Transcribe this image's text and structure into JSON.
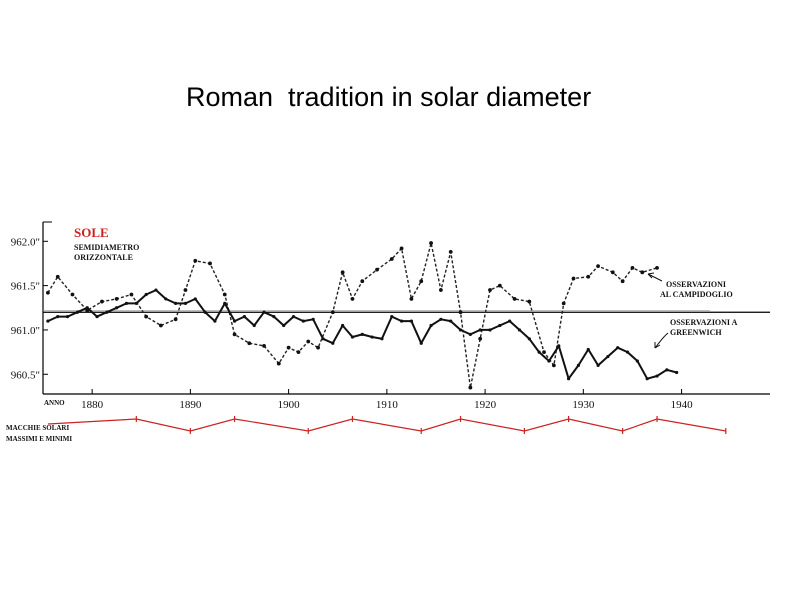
{
  "slide": {
    "title": "Roman  tradition in solar diameter"
  },
  "chart_data": {
    "type": "line",
    "title": "SOLE",
    "subtitle_lines": [
      "SEMIDIAMETRO",
      "ORIZZONTALE"
    ],
    "xlabel": "ANNO",
    "ylabel": "",
    "xlim": [
      1875,
      1949
    ],
    "ylim": [
      960.3,
      962.15
    ],
    "x_ticks": [
      1880,
      1890,
      1900,
      1910,
      1920,
      1930,
      1940
    ],
    "y_ticks": [
      {
        "value": 962.0,
        "label": "962.0\""
      },
      {
        "value": 961.5,
        "label": "961.5\""
      },
      {
        "value": 961.0,
        "label": "961.0\""
      },
      {
        "value": 960.5,
        "label": "960.5\""
      }
    ],
    "reference_line": 961.2,
    "reference_line_2": 961.22,
    "grid": false,
    "colors": {
      "campidoglio": "#222222",
      "greenwich": "#111111",
      "sunspots": "#cc2222"
    },
    "series": [
      {
        "name": "OSSERVAZIONI AL CAMPIDOGLIO",
        "name_lines": [
          "OSSERVAZIONI",
          "AL CAMPIDOGLIO"
        ],
        "style": "dashed",
        "points": [
          [
            1875.5,
            961.42
          ],
          [
            1876.5,
            961.6
          ],
          [
            1878,
            961.4
          ],
          [
            1879.5,
            961.22
          ],
          [
            1881,
            961.32
          ],
          [
            1882.5,
            961.35
          ],
          [
            1884,
            961.4
          ],
          [
            1885.5,
            961.15
          ],
          [
            1887,
            961.05
          ],
          [
            1888.5,
            961.12
          ],
          [
            1889.5,
            961.45
          ],
          [
            1890.5,
            961.78
          ],
          [
            1892,
            961.75
          ],
          [
            1893.5,
            961.4
          ],
          [
            1894.5,
            960.95
          ],
          [
            1896,
            960.85
          ],
          [
            1897.5,
            960.82
          ],
          [
            1899,
            960.62
          ],
          [
            1900,
            960.8
          ],
          [
            1901,
            960.75
          ],
          [
            1902,
            960.87
          ],
          [
            1903,
            960.8
          ],
          [
            1904.5,
            961.2
          ],
          [
            1905.5,
            961.65
          ],
          [
            1906.5,
            961.35
          ],
          [
            1907.5,
            961.55
          ],
          [
            1909,
            961.68
          ],
          [
            1910.5,
            961.8
          ],
          [
            1911.5,
            961.92
          ],
          [
            1912.5,
            961.35
          ],
          [
            1913.5,
            961.55
          ],
          [
            1914.5,
            961.98
          ],
          [
            1915.5,
            961.45
          ],
          [
            1916.5,
            961.88
          ],
          [
            1917.5,
            961.2
          ],
          [
            1918.5,
            960.35
          ],
          [
            1919.5,
            960.9
          ],
          [
            1920.5,
            961.45
          ],
          [
            1921.5,
            961.5
          ],
          [
            1923,
            961.35
          ],
          [
            1924.5,
            961.32
          ],
          [
            1926,
            960.75
          ],
          [
            1927,
            960.6
          ],
          [
            1928,
            961.3
          ],
          [
            1929,
            961.58
          ],
          [
            1930.5,
            961.6
          ],
          [
            1931.5,
            961.72
          ],
          [
            1933,
            961.65
          ],
          [
            1934,
            961.55
          ],
          [
            1935,
            961.7
          ],
          [
            1936,
            961.65
          ],
          [
            1937.5,
            961.7
          ]
        ]
      },
      {
        "name": "OSSERVAZIONI A GREENWICH",
        "name_lines": [
          "OSSERVAZIONI A",
          "GREENWICH"
        ],
        "style": "solid",
        "points": [
          [
            1875.5,
            961.1
          ],
          [
            1876.5,
            961.15
          ],
          [
            1877.5,
            961.15
          ],
          [
            1878.5,
            961.2
          ],
          [
            1879.5,
            961.25
          ],
          [
            1880.5,
            961.15
          ],
          [
            1881.5,
            961.2
          ],
          [
            1882.5,
            961.25
          ],
          [
            1883.5,
            961.3
          ],
          [
            1884.5,
            961.3
          ],
          [
            1885.5,
            961.4
          ],
          [
            1886.5,
            961.45
          ],
          [
            1887.5,
            961.35
          ],
          [
            1888.5,
            961.3
          ],
          [
            1889.5,
            961.3
          ],
          [
            1890.5,
            961.35
          ],
          [
            1891.5,
            961.2
          ],
          [
            1892.5,
            961.1
          ],
          [
            1893.5,
            961.3
          ],
          [
            1894.5,
            961.1
          ],
          [
            1895.5,
            961.15
          ],
          [
            1896.5,
            961.05
          ],
          [
            1897.5,
            961.2
          ],
          [
            1898.5,
            961.15
          ],
          [
            1899.5,
            961.05
          ],
          [
            1900.5,
            961.15
          ],
          [
            1901.5,
            961.1
          ],
          [
            1902.5,
            961.12
          ],
          [
            1903.5,
            960.9
          ],
          [
            1904.5,
            960.85
          ],
          [
            1905.5,
            961.05
          ],
          [
            1906.5,
            960.92
          ],
          [
            1907.5,
            960.95
          ],
          [
            1908.5,
            960.92
          ],
          [
            1909.5,
            960.9
          ],
          [
            1910.5,
            961.15
          ],
          [
            1911.5,
            961.1
          ],
          [
            1912.5,
            961.1
          ],
          [
            1913.5,
            960.85
          ],
          [
            1914.5,
            961.05
          ],
          [
            1915.5,
            961.12
          ],
          [
            1916.5,
            961.1
          ],
          [
            1917.5,
            961.0
          ],
          [
            1918.5,
            960.95
          ],
          [
            1919.5,
            961.0
          ],
          [
            1920.5,
            961.0
          ],
          [
            1921.5,
            961.05
          ],
          [
            1922.5,
            961.1
          ],
          [
            1923.5,
            961.0
          ],
          [
            1924.5,
            960.9
          ],
          [
            1925.5,
            960.75
          ],
          [
            1926.5,
            960.65
          ],
          [
            1927.5,
            960.82
          ],
          [
            1928.5,
            960.45
          ],
          [
            1929.5,
            960.6
          ],
          [
            1930.5,
            960.78
          ],
          [
            1931.5,
            960.6
          ],
          [
            1932.5,
            960.7
          ],
          [
            1933.5,
            960.8
          ],
          [
            1934.5,
            960.75
          ],
          [
            1935.5,
            960.65
          ],
          [
            1936.5,
            960.45
          ],
          [
            1937.5,
            960.48
          ],
          [
            1938.5,
            960.55
          ],
          [
            1939.5,
            960.52
          ]
        ]
      }
    ],
    "sunspot_strip": {
      "label_lines": [
        "MACCHIE SOLARI",
        "MASSIMI E MINIMI"
      ],
      "extrema": [
        {
          "year": 1884.5,
          "type": "max"
        },
        {
          "year": 1890,
          "type": "min"
        },
        {
          "year": 1894.5,
          "type": "max"
        },
        {
          "year": 1902,
          "type": "min"
        },
        {
          "year": 1906.5,
          "type": "max"
        },
        {
          "year": 1913.5,
          "type": "min"
        },
        {
          "year": 1917.5,
          "type": "max"
        },
        {
          "year": 1924,
          "type": "min"
        },
        {
          "year": 1928.5,
          "type": "max"
        },
        {
          "year": 1934,
          "type": "min"
        },
        {
          "year": 1937.5,
          "type": "max"
        },
        {
          "year": 1944.5,
          "type": "min"
        }
      ]
    }
  }
}
